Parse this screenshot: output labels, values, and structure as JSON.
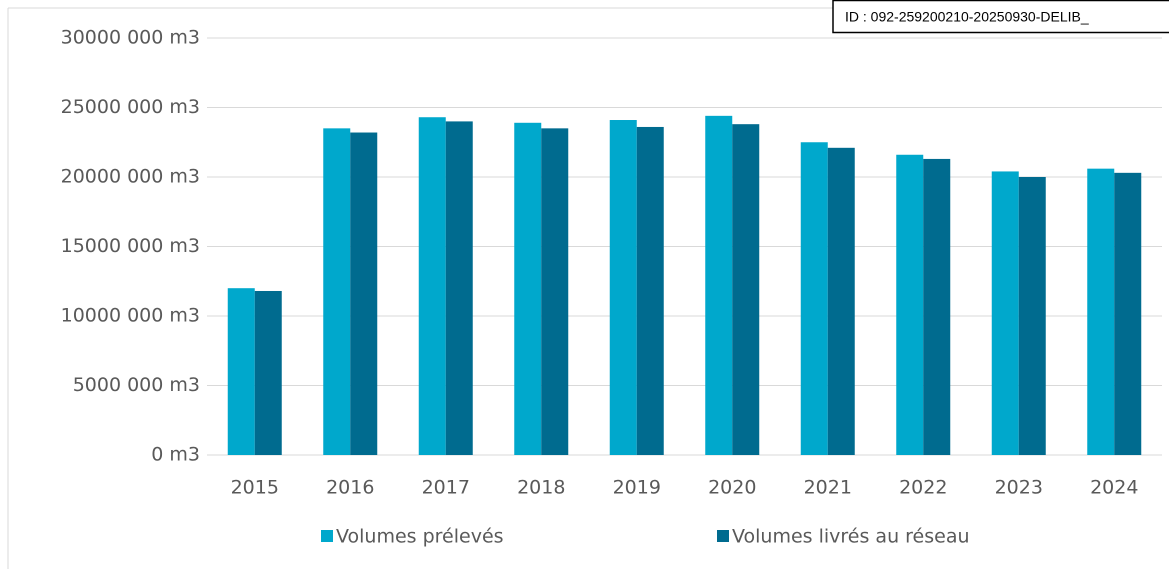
{
  "stamp": "ID : 092-259200210-20250930-DELIB_",
  "chart_data": {
    "type": "bar",
    "categories": [
      "2015",
      "2016",
      "2017",
      "2018",
      "2019",
      "2020",
      "2021",
      "2022",
      "2023",
      "2024"
    ],
    "series": [
      {
        "name": "Volumes prélevés",
        "color": "#00a8cc",
        "values": [
          12000000,
          23500000,
          24300000,
          23900000,
          24100000,
          24400000,
          22500000,
          21600000,
          20400000,
          20600000
        ]
      },
      {
        "name": "Volumes livrés au réseau",
        "color": "#006b8f",
        "values": [
          11800000,
          23200000,
          24000000,
          23500000,
          23600000,
          23800000,
          22100000,
          21300000,
          20000000,
          20300000
        ]
      }
    ],
    "ylim": [
      0,
      30000000
    ],
    "yticks": [
      {
        "value": 0,
        "label": "0 m3"
      },
      {
        "value": 5000000,
        "label": "5000 000 m3"
      },
      {
        "value": 10000000,
        "label": "10000 000 m3"
      },
      {
        "value": 15000000,
        "label": "15000 000 m3"
      },
      {
        "value": 20000000,
        "label": "20000 000 m3"
      },
      {
        "value": 25000000,
        "label": "25000 000 m3"
      },
      {
        "value": 30000000,
        "label": "30000 000 m3"
      }
    ],
    "grid": true,
    "legend": "bottom"
  }
}
